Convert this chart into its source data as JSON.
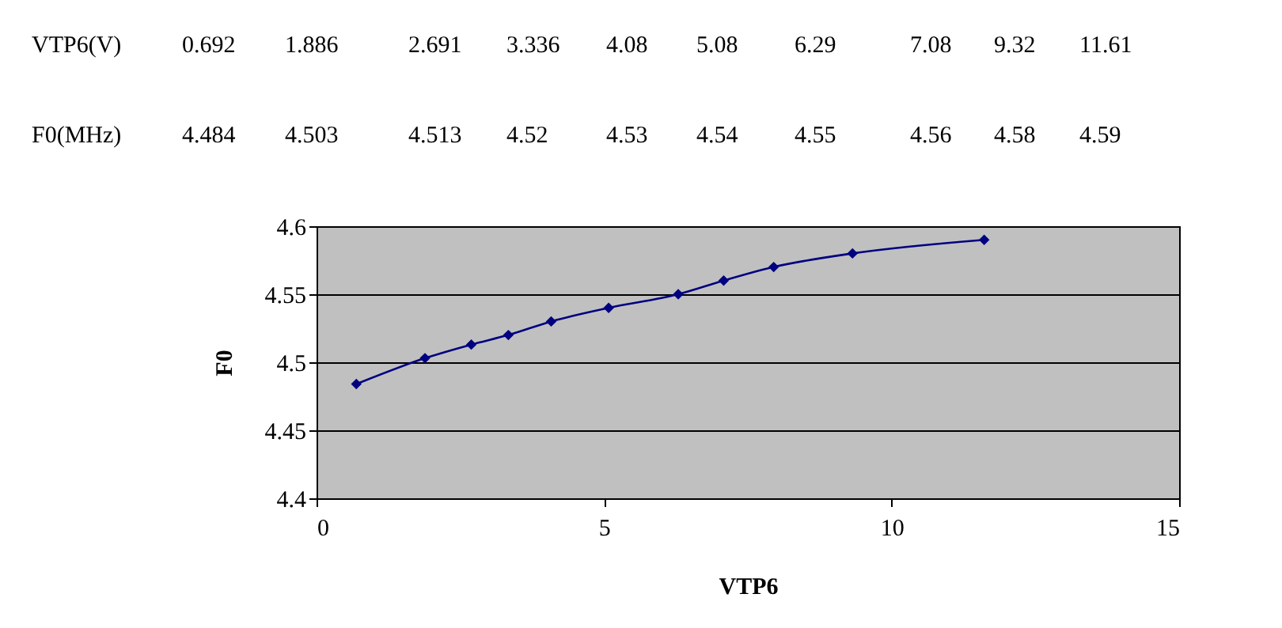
{
  "chart_data": {
    "type": "line",
    "xlabel": "VTP6",
    "ylabel": "F0",
    "x": [
      0.692,
      1.886,
      2.691,
      3.336,
      4.08,
      5.08,
      6.29,
      7.08,
      7.95,
      9.32,
      11.61
    ],
    "series": [
      {
        "color": "#000080",
        "values": [
          4.484,
          4.503,
          4.513,
          4.52,
          4.53,
          4.54,
          4.55,
          4.56,
          4.57,
          4.58,
          4.59
        ]
      }
    ],
    "xlim": [
      0,
      15
    ],
    "xticks": [
      0,
      5,
      10,
      15
    ],
    "ylim": [
      4.4,
      4.6
    ],
    "yticks": [
      4.4,
      4.45,
      4.5,
      4.55,
      4.6
    ],
    "grid": "y",
    "marker": "diamond",
    "line_style": "solid",
    "annotations": [
      "VTP6(V)",
      "0.692",
      "1.886",
      "2.691",
      "3.336",
      "4.08",
      "5.08",
      "6.29",
      "7.08",
      "9.32",
      "11.61",
      "F0(MHz)",
      "4.484",
      "4.503",
      "4.513",
      "4.52",
      "4.53",
      "4.54",
      "4.55",
      "4.56",
      "4.58",
      "4.59"
    ]
  }
}
